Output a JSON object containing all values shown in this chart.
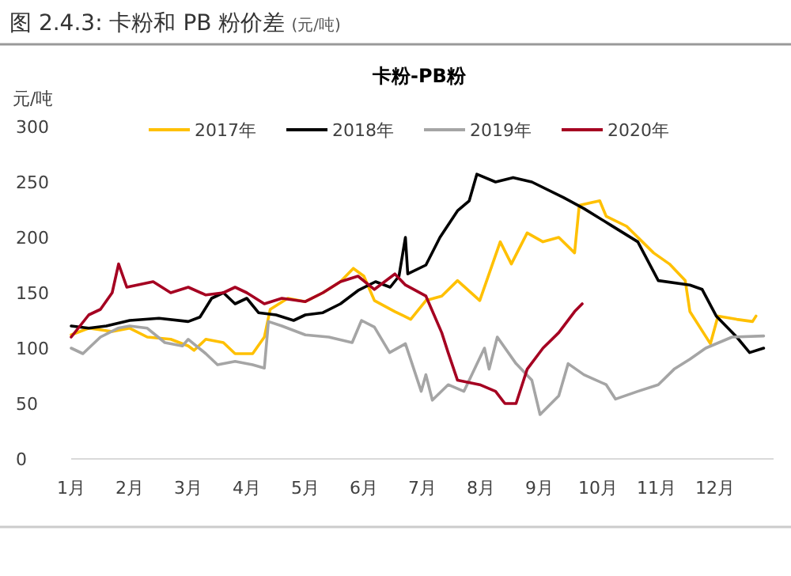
{
  "chart_data": {
    "type": "line",
    "title": "图 2.4.3:   卡粉和 PB 粉价差",
    "subtitle": "(元/吨)",
    "annotations": [
      "卡粉-PB粉"
    ],
    "ylabel": "元/吨",
    "xlim": [
      1,
      13
    ],
    "xticks": [
      {
        "value": 1,
        "label": "1月"
      },
      {
        "value": 2,
        "label": "2月"
      },
      {
        "value": 3,
        "label": "3月"
      },
      {
        "value": 4,
        "label": "4月"
      },
      {
        "value": 5,
        "label": "5月"
      },
      {
        "value": 6,
        "label": "6月"
      },
      {
        "value": 7,
        "label": "7月"
      },
      {
        "value": 8,
        "label": "8月"
      },
      {
        "value": 9,
        "label": "9月"
      },
      {
        "value": 10,
        "label": "10月"
      },
      {
        "value": 11,
        "label": "11月"
      },
      {
        "value": 12,
        "label": "12月"
      }
    ],
    "ylim": [
      0,
      300
    ],
    "yticks": [
      0,
      50,
      100,
      150,
      200,
      250,
      300
    ],
    "grid": false,
    "legend": "top",
    "series": [
      {
        "name": "2017年",
        "color": "#ffc000",
        "x": [
          1.0,
          1.3,
          1.7,
          2.0,
          2.3,
          2.7,
          3.0,
          3.1,
          3.3,
          3.6,
          3.8,
          4.1,
          4.3,
          4.4,
          4.7,
          5.0,
          5.3,
          5.6,
          5.82,
          6.0,
          6.18,
          6.53,
          6.8,
          7.06,
          7.33,
          7.6,
          7.98,
          8.33,
          8.52,
          8.79,
          9.06,
          9.33,
          9.6,
          9.68,
          10.03,
          10.14,
          10.49,
          10.95,
          11.22,
          11.49,
          11.57,
          11.92,
          12.05,
          12.37,
          12.64,
          12.7
        ],
        "values": [
          112,
          118,
          115,
          118,
          110,
          108,
          102,
          98,
          108,
          105,
          95,
          95,
          110,
          135,
          145,
          142,
          150,
          160,
          172,
          165,
          143,
          133,
          126,
          143,
          147,
          161,
          143,
          196,
          176,
          204,
          196,
          200,
          186,
          229,
          233,
          219,
          210,
          186,
          176,
          161,
          133,
          104,
          129,
          126,
          124,
          129
        ]
      },
      {
        "name": "2018年",
        "color": "#000000",
        "x": [
          1.0,
          1.3,
          1.6,
          2.0,
          2.5,
          3.0,
          3.2,
          3.4,
          3.6,
          3.8,
          4.0,
          4.2,
          4.5,
          4.8,
          5.0,
          5.3,
          5.6,
          5.9,
          6.2,
          6.45,
          6.6,
          6.71,
          6.75,
          7.06,
          7.3,
          7.6,
          7.8,
          7.93,
          8.25,
          8.55,
          8.87,
          9.41,
          9.76,
          10.22,
          10.68,
          11.03,
          11.57,
          11.78,
          12.02,
          12.37,
          12.59,
          12.83
        ],
        "values": [
          120,
          118,
          120,
          125,
          127,
          124,
          128,
          145,
          150,
          140,
          145,
          132,
          130,
          125,
          130,
          132,
          140,
          152,
          160,
          155,
          165,
          200,
          167,
          175,
          200,
          224,
          233,
          257,
          250,
          254,
          250,
          236,
          226,
          211,
          196,
          161,
          157,
          153,
          129,
          110,
          96,
          100
        ]
      },
      {
        "name": "2019年",
        "color": "#a5a5a5",
        "x": [
          1.0,
          1.2,
          1.5,
          1.8,
          2.0,
          2.3,
          2.6,
          2.9,
          3.0,
          3.3,
          3.5,
          3.8,
          4.1,
          4.3,
          4.37,
          4.6,
          5.0,
          5.4,
          5.8,
          5.96,
          6.18,
          6.44,
          6.71,
          6.98,
          7.06,
          7.17,
          7.44,
          7.71,
          8.06,
          8.14,
          8.28,
          8.6,
          8.87,
          9.01,
          9.33,
          9.49,
          9.76,
          10.14,
          10.3,
          10.68,
          11.03,
          11.3,
          11.57,
          11.84,
          12.29,
          12.83
        ],
        "values": [
          100,
          95,
          110,
          118,
          120,
          118,
          105,
          102,
          108,
          95,
          85,
          88,
          85,
          82,
          124,
          120,
          112,
          110,
          105,
          125,
          119,
          96,
          104,
          61,
          76,
          53,
          67,
          61,
          100,
          81,
          110,
          86,
          71,
          40,
          57,
          86,
          76,
          67,
          54,
          61,
          67,
          81,
          90,
          100,
          110,
          111
        ]
      },
      {
        "name": "2020年",
        "color": "#a50021",
        "x": [
          1.0,
          1.3,
          1.5,
          1.7,
          1.81,
          1.95,
          2.4,
          2.7,
          3.0,
          3.3,
          3.6,
          3.8,
          4.0,
          4.3,
          4.6,
          5.0,
          5.3,
          5.6,
          5.9,
          6.18,
          6.53,
          6.71,
          7.06,
          7.33,
          7.44,
          7.6,
          7.98,
          8.25,
          8.41,
          8.6,
          8.79,
          9.06,
          9.33,
          9.6,
          9.73
        ],
        "values": [
          110,
          130,
          135,
          150,
          176,
          155,
          160,
          150,
          155,
          148,
          150,
          155,
          150,
          140,
          145,
          142,
          150,
          160,
          165,
          153,
          167,
          157,
          147,
          114,
          96,
          71,
          67,
          61,
          50,
          50,
          81,
          100,
          114,
          133,
          140
        ]
      }
    ]
  }
}
